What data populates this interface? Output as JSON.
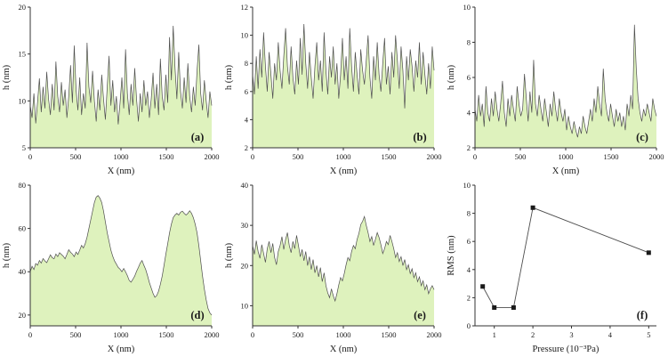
{
  "figure": {
    "background": "#ffffff",
    "fill_color": "#def2bd",
    "line_color": "#4d4d4d",
    "axis_color": "#333333",
    "marker_color": "#1a1a1a"
  },
  "chart_data": [
    {
      "type": "area",
      "panel_label": "(a)",
      "xlabel": "X (nm)",
      "ylabel": "h (nm)",
      "xlim": [
        0,
        2000
      ],
      "ylim": [
        5,
        20
      ],
      "xticks": [
        0,
        500,
        1000,
        1500,
        2000
      ],
      "yticks": [
        5,
        10,
        15,
        20
      ],
      "y": [
        9.5,
        8.2,
        10.8,
        7.6,
        9.9,
        12.4,
        8.8,
        11.5,
        9.2,
        13.1,
        10.2,
        8.5,
        11.8,
        9.0,
        14.2,
        10.5,
        8.8,
        12.0,
        9.5,
        11.2,
        8.2,
        10.5,
        13.8,
        9.8,
        15.9,
        11.2,
        9.0,
        12.5,
        8.5,
        10.8,
        9.2,
        16.2,
        11.5,
        9.8,
        13.2,
        10.0,
        7.8,
        11.2,
        9.0,
        12.8,
        10.2,
        8.0,
        11.5,
        14.8,
        9.5,
        12.2,
        8.8,
        10.5,
        7.5,
        9.8,
        12.5,
        9.2,
        15.5,
        10.8,
        8.5,
        11.8,
        9.5,
        13.5,
        10.2,
        7.8,
        10.8,
        8.8,
        12.2,
        9.5,
        11.0,
        8.2,
        10.2,
        13.0,
        9.2,
        11.8,
        8.5,
        14.5,
        10.5,
        9.0,
        12.8,
        9.8,
        16.8,
        12.2,
        18.0,
        13.5,
        10.2,
        15.2,
        11.0,
        9.2,
        12.5,
        9.8,
        14.0,
        10.5,
        8.8,
        11.5,
        9.5,
        13.2,
        16.0,
        10.8,
        9.0,
        12.2,
        10.0,
        8.2,
        11.0,
        9.5
      ]
    },
    {
      "type": "area",
      "panel_label": "(b)",
      "xlabel": "X (nm)",
      "ylabel": "h (nm)",
      "xlim": [
        0,
        2000
      ],
      "ylim": [
        2,
        12
      ],
      "xticks": [
        0,
        500,
        1000,
        1500,
        2000
      ],
      "yticks": [
        2,
        4,
        6,
        8,
        10,
        12
      ],
      "y": [
        7.2,
        5.8,
        8.5,
        6.2,
        9.0,
        7.0,
        10.2,
        7.8,
        6.0,
        8.8,
        7.2,
        5.5,
        8.0,
        6.8,
        9.5,
        7.5,
        6.2,
        8.5,
        10.5,
        7.8,
        6.5,
        9.2,
        7.0,
        5.8,
        8.2,
        6.5,
        9.8,
        7.2,
        10.8,
        8.0,
        6.2,
        8.8,
        7.0,
        5.5,
        7.8,
        9.5,
        6.8,
        8.2,
        6.0,
        10.2,
        7.5,
        5.8,
        8.5,
        7.0,
        9.2,
        6.5,
        8.0,
        5.5,
        7.2,
        9.8,
        6.8,
        8.5,
        6.2,
        10.5,
        7.8,
        6.0,
        8.8,
        7.2,
        5.8,
        9.0,
        7.5,
        6.5,
        8.2,
        10.0,
        7.0,
        5.5,
        8.5,
        6.8,
        9.5,
        7.2,
        6.0,
        8.0,
        9.8,
        6.5,
        7.8,
        5.8,
        8.8,
        7.0,
        10.0,
        8.2,
        6.2,
        9.2,
        7.5,
        4.8,
        8.5,
        6.8,
        9.0,
        7.8,
        6.0,
        8.2,
        7.0,
        9.5,
        6.5,
        8.8,
        7.2,
        5.8,
        8.0,
        6.2,
        9.2,
        7.5
      ]
    },
    {
      "type": "area",
      "panel_label": "(c)",
      "xlabel": "X (nm)",
      "ylabel": "h (nm)",
      "xlim": [
        0,
        2000
      ],
      "ylim": [
        2,
        10
      ],
      "xticks": [
        0,
        500,
        1000,
        1500,
        2000
      ],
      "yticks": [
        2,
        4,
        6,
        8,
        10
      ],
      "y": [
        4.2,
        3.5,
        5.0,
        3.8,
        4.5,
        3.2,
        5.5,
        4.0,
        3.5,
        4.8,
        3.8,
        5.2,
        4.2,
        3.5,
        4.5,
        5.8,
        4.0,
        3.2,
        4.8,
        3.8,
        5.0,
        4.2,
        3.5,
        5.5,
        4.5,
        3.8,
        4.2,
        6.2,
        4.8,
        3.5,
        5.2,
        4.0,
        7.0,
        4.5,
        3.8,
        5.0,
        4.2,
        3.5,
        4.8,
        4.0,
        3.2,
        4.5,
        3.8,
        5.2,
        4.2,
        3.5,
        4.8,
        4.0,
        3.5,
        4.2,
        3.0,
        3.8,
        3.2,
        2.8,
        3.5,
        3.0,
        2.6,
        3.2,
        2.8,
        3.8,
        3.2,
        2.8,
        3.5,
        4.2,
        3.5,
        4.8,
        4.0,
        5.5,
        4.5,
        3.8,
        6.5,
        4.8,
        4.0,
        3.5,
        4.5,
        3.8,
        3.2,
        4.2,
        3.5,
        4.0,
        3.2,
        3.8,
        3.0,
        4.5,
        3.8,
        5.0,
        4.2,
        9.0,
        6.5,
        4.8,
        4.0,
        3.5,
        4.2,
        3.8,
        4.5,
        4.0,
        3.5,
        4.8,
        4.2,
        3.8
      ]
    },
    {
      "type": "area",
      "panel_label": "(d)",
      "xlabel": "X (nm)",
      "ylabel": "h (nm)",
      "xlim": [
        0,
        2000
      ],
      "ylim": [
        15,
        80
      ],
      "xticks": [
        0,
        500,
        1000,
        1500,
        2000
      ],
      "yticks": [
        20,
        40,
        60,
        80
      ],
      "y": [
        40,
        42.5,
        41,
        43.8,
        43,
        45.2,
        44,
        46.1,
        45,
        44.2,
        46,
        47.8,
        46.5,
        46,
        48.2,
        47,
        48.8,
        48,
        47.2,
        46,
        48,
        50.2,
        49,
        48.2,
        47,
        49.1,
        48,
        50,
        52.2,
        51,
        53,
        56,
        60,
        64,
        68,
        72,
        74.5,
        75.2,
        74,
        72,
        68,
        63,
        58,
        54,
        50,
        47.2,
        45,
        43.5,
        42,
        41.2,
        40,
        41.5,
        40,
        38.2,
        36,
        35.2,
        36.5,
        38,
        40.2,
        42,
        44,
        45.2,
        43,
        41,
        38.2,
        35,
        32.5,
        30,
        28.2,
        29,
        31,
        34.2,
        38,
        43,
        48.2,
        53,
        58,
        62,
        65,
        66.2,
        67,
        66.2,
        67.5,
        68,
        67,
        66.2,
        67,
        68.2,
        67,
        65,
        62,
        58,
        52,
        45,
        38,
        32,
        27,
        23,
        21,
        20
      ]
    },
    {
      "type": "area",
      "panel_label": "(e)",
      "xlabel": "X (nm)",
      "ylabel": "h (nm)",
      "xlim": [
        0,
        2000
      ],
      "ylim": [
        5,
        40
      ],
      "xticks": [
        0,
        500,
        1000,
        1500,
        2000
      ],
      "yticks": [
        10,
        20,
        30,
        40
      ],
      "y": [
        25,
        22.8,
        26.2,
        23.5,
        21.8,
        25.2,
        23,
        20.8,
        24.2,
        26,
        23.2,
        25.5,
        22,
        20.2,
        23.5,
        25,
        27.2,
        24,
        26.5,
        28.2,
        25,
        23.2,
        26,
        24.2,
        27.5,
        25,
        22.2,
        24,
        21.2,
        23.5,
        20,
        22.2,
        19,
        21.5,
        18.2,
        20,
        17.2,
        19.5,
        16,
        18.2,
        15,
        13.2,
        12,
        14.2,
        12.5,
        11.2,
        13,
        15.2,
        17,
        16.2,
        18,
        20.2,
        22,
        21.2,
        23.5,
        25,
        24.2,
        26.5,
        28,
        30.2,
        31,
        32.2,
        30,
        28.2,
        26,
        27.2,
        25,
        26.5,
        28.2,
        27,
        25.2,
        23,
        24.2,
        26,
        25.2,
        27.5,
        26,
        24.2,
        22,
        23.2,
        21,
        22.2,
        20,
        21.5,
        19,
        20.2,
        18,
        19.2,
        17,
        18.2,
        16,
        17.2,
        15,
        16.2,
        14,
        15.2,
        13,
        14.2,
        15,
        14
      ]
    },
    {
      "type": "line",
      "panel_label": "(f)",
      "xlabel": "Pressure (10⁻³Pa)",
      "ylabel": "RMS (nm)",
      "xlim": [
        0.5,
        5.2
      ],
      "ylim": [
        0,
        10
      ],
      "xticks": [
        1,
        2,
        3,
        4,
        5
      ],
      "yticks": [
        0,
        2,
        4,
        6,
        8,
        10
      ],
      "x": [
        0.7,
        1.0,
        1.5,
        2.0,
        5.0
      ],
      "y": [
        2.8,
        1.3,
        1.3,
        8.4,
        5.2
      ]
    }
  ]
}
